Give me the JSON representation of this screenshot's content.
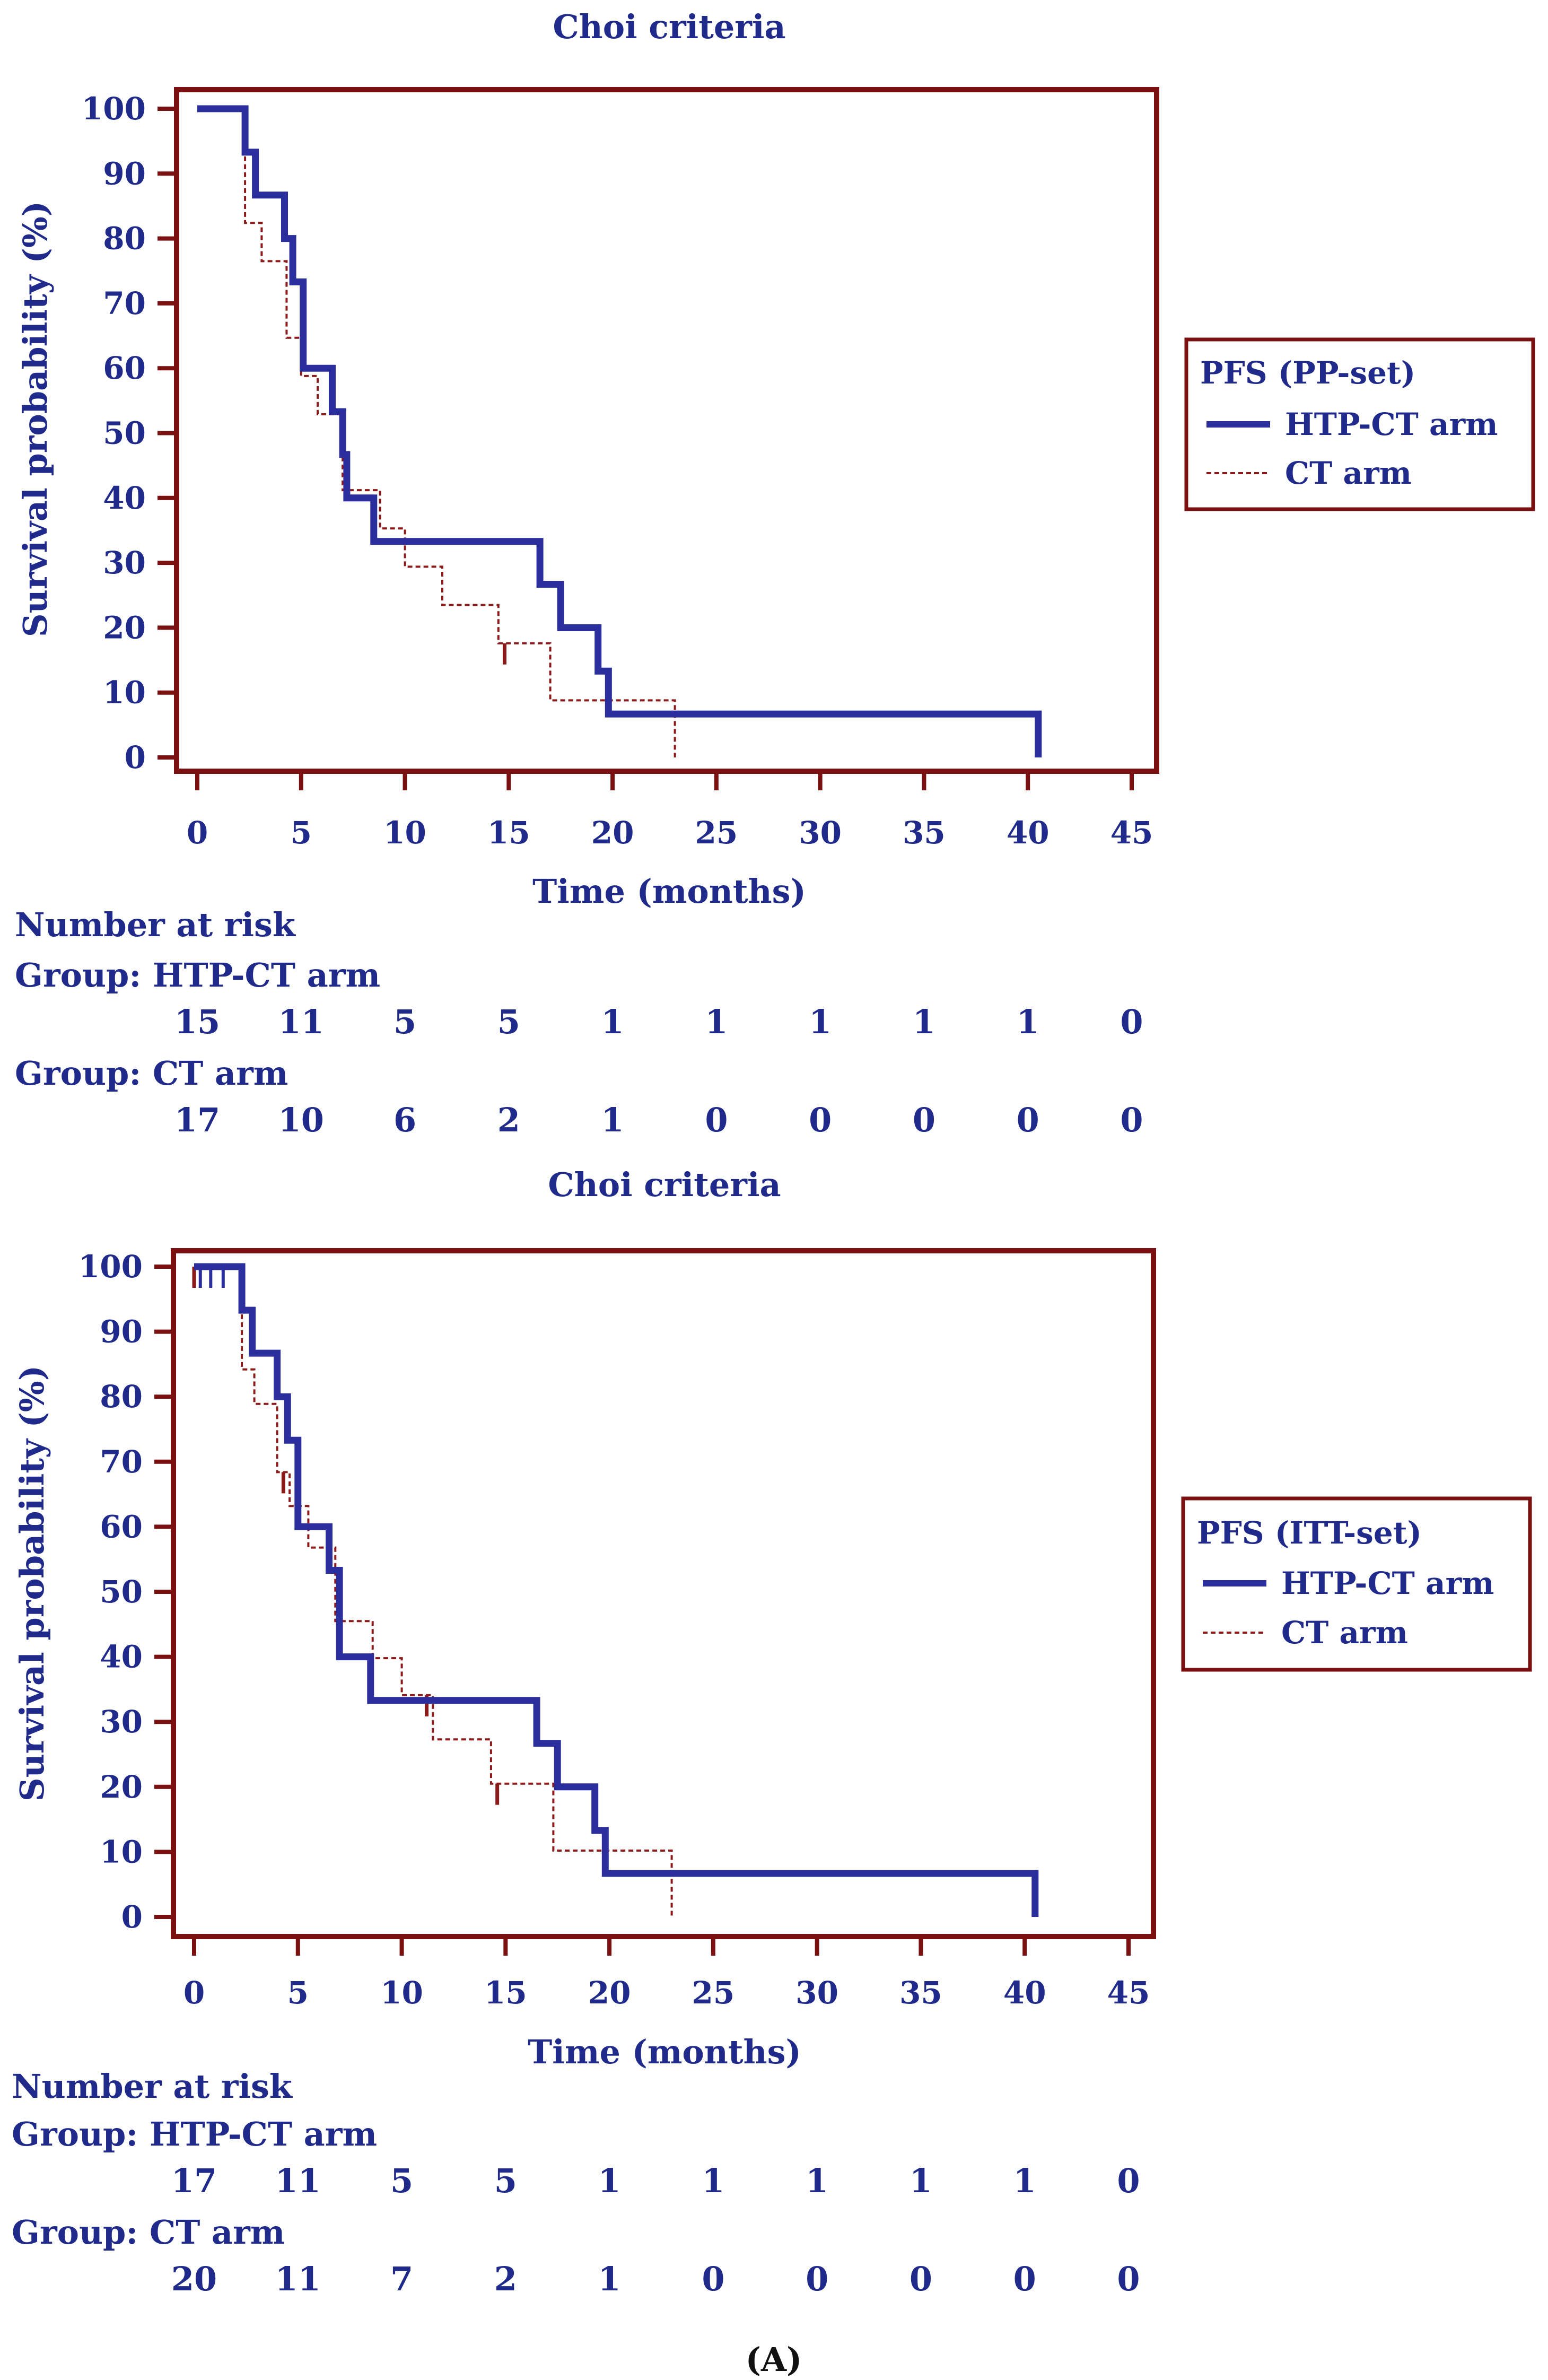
{
  "figure": {
    "panel_label": "(A)",
    "panel_letter": "A",
    "colors": {
      "htp": "#2b2f9e",
      "ct": "#8b1a1a",
      "axis": "#7b1010",
      "text": "#1f2a8a"
    }
  },
  "chart_data": [
    {
      "type": "line",
      "subtype": "kaplan-meier",
      "title": "Choi criteria",
      "xlabel": "Time (months)",
      "ylabel": "Survival probability (%)",
      "xlim": [
        0,
        45
      ],
      "ylim": [
        0,
        100
      ],
      "x_ticks": [
        0,
        5,
        10,
        15,
        20,
        25,
        30,
        35,
        40,
        45
      ],
      "y_ticks": [
        0,
        10,
        20,
        30,
        40,
        50,
        60,
        70,
        80,
        90,
        100
      ],
      "legend": {
        "title": "PFS (PP-set)",
        "position": "right"
      },
      "series": [
        {
          "name": "HTP-CT arm",
          "style": "solid",
          "steps": [
            [
              0,
              100
            ],
            [
              2.3,
              100
            ],
            [
              2.3,
              93.3
            ],
            [
              2.8,
              93.3
            ],
            [
              2.8,
              86.7
            ],
            [
              4.2,
              86.7
            ],
            [
              4.2,
              80
            ],
            [
              4.6,
              80
            ],
            [
              4.6,
              73.3
            ],
            [
              5.1,
              73.3
            ],
            [
              5.1,
              60
            ],
            [
              6.5,
              60
            ],
            [
              6.5,
              53.3
            ],
            [
              7.0,
              53.3
            ],
            [
              7.0,
              46.7
            ],
            [
              7.2,
              46.7
            ],
            [
              7.2,
              40
            ],
            [
              8.5,
              40
            ],
            [
              8.5,
              33.3
            ],
            [
              16.5,
              33.3
            ],
            [
              16.5,
              26.7
            ],
            [
              17.5,
              26.7
            ],
            [
              17.5,
              20
            ],
            [
              19.3,
              20
            ],
            [
              19.3,
              13.3
            ],
            [
              19.8,
              13.3
            ],
            [
              19.8,
              6.7
            ],
            [
              40.5,
              6.7
            ],
            [
              40.5,
              0
            ]
          ],
          "censored": []
        },
        {
          "name": "CT arm",
          "style": "dashed",
          "steps": [
            [
              0,
              100
            ],
            [
              2.3,
              100
            ],
            [
              2.3,
              82.4
            ],
            [
              3.1,
              82.4
            ],
            [
              3.1,
              76.5
            ],
            [
              4.3,
              76.5
            ],
            [
              4.3,
              64.7
            ],
            [
              5.0,
              64.7
            ],
            [
              5.0,
              58.8
            ],
            [
              5.8,
              58.8
            ],
            [
              5.8,
              52.9
            ],
            [
              7.0,
              52.9
            ],
            [
              7.0,
              41.2
            ],
            [
              8.8,
              41.2
            ],
            [
              8.8,
              35.3
            ],
            [
              10.0,
              35.3
            ],
            [
              10.0,
              29.4
            ],
            [
              11.8,
              29.4
            ],
            [
              11.8,
              23.5
            ],
            [
              14.5,
              23.5
            ],
            [
              14.5,
              17.6
            ],
            [
              17.0,
              17.6
            ],
            [
              17.0,
              8.8
            ],
            [
              23.0,
              8.8
            ],
            [
              23.0,
              0
            ]
          ],
          "censored": [
            [
              14.8,
              17.6
            ]
          ]
        }
      ],
      "risk_table": {
        "heading": "Number at risk",
        "times": [
          0,
          5,
          10,
          15,
          20,
          25,
          30,
          35,
          40,
          45
        ],
        "groups": [
          {
            "label": "Group: HTP-CT arm",
            "values": [
              "15",
              "11",
              "5",
              "5",
              "1",
              "1",
              "1",
              "1",
              "1",
              "0"
            ]
          },
          {
            "label": "Group: CT arm",
            "values": [
              "17",
              "10",
              "6",
              "2",
              "1",
              "0",
              "0",
              "0",
              "0",
              "0"
            ]
          }
        ]
      }
    },
    {
      "type": "line",
      "subtype": "kaplan-meier",
      "title": "Choi criteria",
      "xlabel": "Time (months)",
      "ylabel": "Survival probability (%)",
      "xlim": [
        0,
        45
      ],
      "ylim": [
        0,
        100
      ],
      "x_ticks": [
        0,
        5,
        10,
        15,
        20,
        25,
        30,
        35,
        40,
        45
      ],
      "y_ticks": [
        0,
        10,
        20,
        30,
        40,
        50,
        60,
        70,
        80,
        90,
        100
      ],
      "legend": {
        "title": "PFS (ITT-set)",
        "position": "right"
      },
      "series": [
        {
          "name": "HTP-CT arm",
          "style": "solid",
          "steps": [
            [
              0,
              100
            ],
            [
              2.3,
              100
            ],
            [
              2.3,
              93.3
            ],
            [
              2.8,
              93.3
            ],
            [
              2.8,
              86.7
            ],
            [
              4.0,
              86.7
            ],
            [
              4.0,
              80
            ],
            [
              4.5,
              80
            ],
            [
              4.5,
              73.3
            ],
            [
              5.0,
              73.3
            ],
            [
              5.0,
              60
            ],
            [
              6.5,
              60
            ],
            [
              6.5,
              53.3
            ],
            [
              7.0,
              53.3
            ],
            [
              7.0,
              40
            ],
            [
              8.5,
              40
            ],
            [
              8.5,
              33.3
            ],
            [
              16.5,
              33.3
            ],
            [
              16.5,
              26.7
            ],
            [
              17.5,
              26.7
            ],
            [
              17.5,
              20
            ],
            [
              19.3,
              20
            ],
            [
              19.3,
              13.3
            ],
            [
              19.8,
              13.3
            ],
            [
              19.8,
              6.7
            ],
            [
              40.5,
              6.7
            ],
            [
              40.5,
              0
            ]
          ],
          "censored": [
            [
              0.3,
              100
            ],
            [
              0.8,
              100
            ],
            [
              1.4,
              100
            ]
          ]
        },
        {
          "name": "CT arm",
          "style": "dashed",
          "steps": [
            [
              0,
              100
            ],
            [
              2.3,
              100
            ],
            [
              2.3,
              84.2
            ],
            [
              2.9,
              84.2
            ],
            [
              2.9,
              78.9
            ],
            [
              4.0,
              78.9
            ],
            [
              4.0,
              68.4
            ],
            [
              4.6,
              68.4
            ],
            [
              4.6,
              63.2
            ],
            [
              5.5,
              63.2
            ],
            [
              5.5,
              56.8
            ],
            [
              6.8,
              56.8
            ],
            [
              6.8,
              45.5
            ],
            [
              8.6,
              45.5
            ],
            [
              8.6,
              39.8
            ],
            [
              10.0,
              39.8
            ],
            [
              10.0,
              34.1
            ],
            [
              11.5,
              34.1
            ],
            [
              11.5,
              27.3
            ],
            [
              14.3,
              27.3
            ],
            [
              14.3,
              20.5
            ],
            [
              17.3,
              20.5
            ],
            [
              17.3,
              10.2
            ],
            [
              23.0,
              10.2
            ],
            [
              23.0,
              0
            ]
          ],
          "censored": [
            [
              0.0,
              100
            ],
            [
              4.3,
              68.4
            ],
            [
              7.0,
              45.5
            ],
            [
              11.2,
              34.1
            ],
            [
              14.6,
              20.5
            ]
          ]
        }
      ],
      "risk_table": {
        "heading": "Number at risk",
        "times": [
          0,
          5,
          10,
          15,
          20,
          25,
          30,
          35,
          40,
          45
        ],
        "groups": [
          {
            "label": "Group: HTP-CT arm",
            "values": [
              "17",
              "11",
              "5",
              "5",
              "1",
              "1",
              "1",
              "1",
              "1",
              "0"
            ]
          },
          {
            "label": "Group: CT arm",
            "values": [
              "20",
              "11",
              "7",
              "2",
              "1",
              "0",
              "0",
              "0",
              "0",
              "0"
            ]
          }
        ]
      }
    }
  ]
}
